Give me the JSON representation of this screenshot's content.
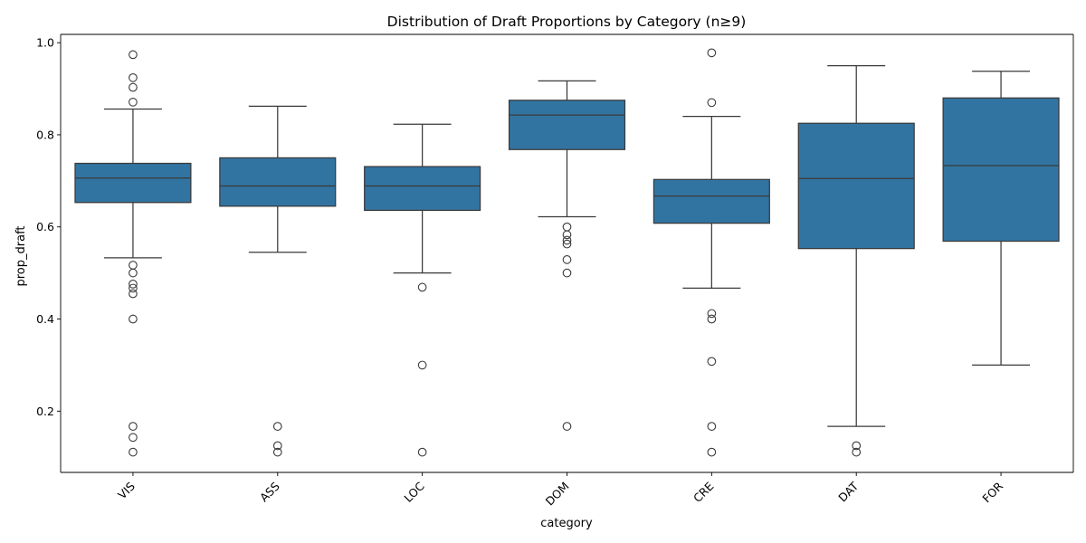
{
  "chart_data": {
    "type": "box",
    "title": "Distribution of Draft Proportions by Category (n≥9)",
    "xlabel": "category",
    "ylabel": "prop_draft",
    "ylim": [
      0.067,
      1.018
    ],
    "yticks": [
      0.2,
      0.4,
      0.6,
      0.8,
      1.0
    ],
    "ytick_labels": [
      "0.2",
      "0.4",
      "0.6",
      "0.8",
      "1.0"
    ],
    "xtick_rotation": 45,
    "grid": false,
    "legend": "none",
    "box_color": "#3274a1",
    "edge_color": "#3a3a3a",
    "categories": [
      "VIS",
      "ASS",
      "LOC",
      "DOM",
      "CRE",
      "DAT",
      "FOR"
    ],
    "boxes": [
      {
        "category": "VIS",
        "q1": 0.653,
        "median": 0.706,
        "q3": 0.738,
        "whisker_low": 0.533,
        "whisker_high": 0.856,
        "outliers": [
          0.974,
          0.924,
          0.903,
          0.871,
          0.517,
          0.5,
          0.476,
          0.467,
          0.455,
          0.4,
          0.167,
          0.143,
          0.111
        ]
      },
      {
        "category": "ASS",
        "q1": 0.645,
        "median": 0.689,
        "q3": 0.75,
        "whisker_low": 0.545,
        "whisker_high": 0.862,
        "outliers": [
          0.167,
          0.125,
          0.111
        ]
      },
      {
        "category": "LOC",
        "q1": 0.636,
        "median": 0.689,
        "q3": 0.731,
        "whisker_low": 0.5,
        "whisker_high": 0.823,
        "outliers": [
          0.469,
          0.3,
          0.111
        ]
      },
      {
        "category": "DOM",
        "q1": 0.768,
        "median": 0.843,
        "q3": 0.875,
        "whisker_low": 0.622,
        "whisker_high": 0.917,
        "outliers": [
          0.6,
          0.583,
          0.571,
          0.563,
          0.529,
          0.5,
          0.167
        ]
      },
      {
        "category": "CRE",
        "q1": 0.608,
        "median": 0.667,
        "q3": 0.703,
        "whisker_low": 0.467,
        "whisker_high": 0.84,
        "outliers": [
          0.978,
          0.87,
          0.412,
          0.4,
          0.308,
          0.167,
          0.111
        ]
      },
      {
        "category": "DAT",
        "q1": 0.553,
        "median": 0.705,
        "q3": 0.825,
        "whisker_low": 0.167,
        "whisker_high": 0.95,
        "outliers": [
          0.125,
          0.111
        ]
      },
      {
        "category": "FOR",
        "q1": 0.569,
        "median": 0.733,
        "q3": 0.88,
        "whisker_low": 0.3,
        "whisker_high": 0.938,
        "outliers": []
      }
    ]
  }
}
